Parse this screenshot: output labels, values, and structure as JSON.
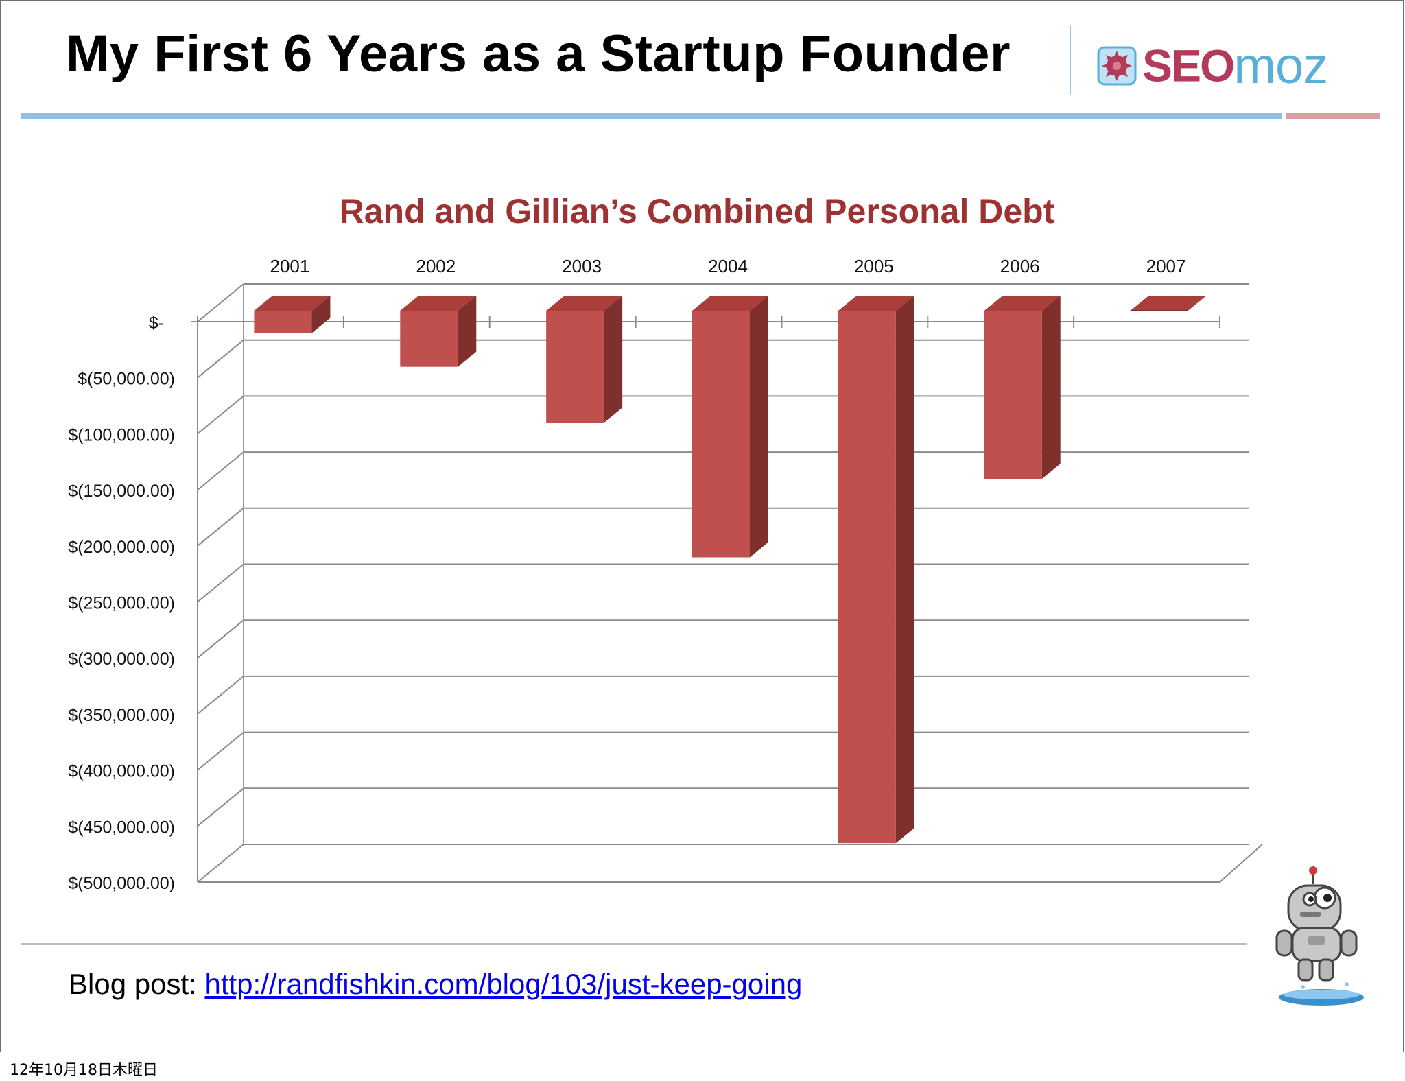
{
  "slide": {
    "title": "My First 6 Years as a Startup Founder",
    "logo": {
      "part1": "SEO",
      "part2": "moz"
    },
    "blog": {
      "label": "Blog post: ",
      "url": "http://randfishkin.com/blog/103/just-keep-going"
    },
    "date": "12年10月18日木曜日"
  },
  "colors": {
    "bar_front": "#c0504d",
    "bar_top": "#a93e3b",
    "bar_side": "#7f302d",
    "title_red": "#9e3232",
    "rule_blue": "#90bfe3",
    "rule_red": "#d8a09e",
    "link": "#0000ee"
  },
  "icons": [
    "seomoz-logo-icon",
    "roger-robot-mascot-icon"
  ],
  "chart_data": {
    "type": "bar",
    "style": "3d-column",
    "title": "Rand and Gillian’s Combined Personal Debt",
    "categories": [
      "2001",
      "2002",
      "2003",
      "2004",
      "2005",
      "2006",
      "2007"
    ],
    "values": [
      -20000,
      -50000,
      -100000,
      -220000,
      -475000,
      -150000,
      0
    ],
    "ylim": [
      -500000,
      0
    ],
    "ytick_values": [
      0,
      -50000,
      -100000,
      -150000,
      -200000,
      -250000,
      -300000,
      -350000,
      -400000,
      -450000,
      -500000
    ],
    "ytick_labels": [
      "$-",
      "$(50,000.00)",
      "$(100,000.00)",
      "$(150,000.00)",
      "$(200,000.00)",
      "$(250,000.00)",
      "$(300,000.00)",
      "$(350,000.00)",
      "$(400,000.00)",
      "$(450,000.00)",
      "$(500,000.00)"
    ],
    "x_axis_position": "top",
    "grid": true,
    "legend": "none"
  }
}
